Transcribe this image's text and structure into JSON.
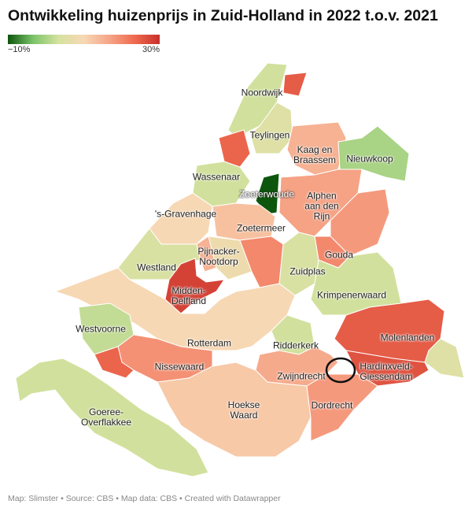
{
  "title": "Ontwikkeling huizenprijs in Zuid-Holland in 2022 t.o.v. 2021",
  "legend": {
    "colors": [
      "#0d560d",
      "#7cc46a",
      "#d5e2a0",
      "#f7d8b4",
      "#f6a588",
      "#ef6b50",
      "#c8302b"
    ],
    "ticks": [
      {
        "value": -10,
        "label": "−10%"
      },
      {
        "value": 30,
        "label": "30%"
      }
    ]
  },
  "regions": [
    {
      "name": "Noordwijk",
      "value": 3
    },
    {
      "name": null,
      "value": 25
    },
    {
      "name": "Teylingen",
      "value": 5
    },
    {
      "name": null,
      "value": 24
    },
    {
      "name": "Kaag en\nBraassem",
      "value": 15
    },
    {
      "name": "Nieuwkoop",
      "value": 0
    },
    {
      "name": "Wassenaar",
      "value": 3
    },
    {
      "name": "Zoeterwoude",
      "value": -10
    },
    {
      "name": "Alphen\naan den\nRijn",
      "value": 17
    },
    {
      "name": null,
      "value": 18
    },
    {
      "name": "'s-Gravenhage",
      "value": 10
    },
    {
      "name": "Zoetermeer",
      "value": 13
    },
    {
      "name": "Pijnacker-\nNootdorp",
      "value": 8
    },
    {
      "name": null,
      "value": 20
    },
    {
      "name": "Westland",
      "value": 4
    },
    {
      "name": null,
      "value": 15
    },
    {
      "name": "Gouda",
      "value": 20
    },
    {
      "name": "Zuidplas",
      "value": 4
    },
    {
      "name": "Rotterdam",
      "value": 10
    },
    {
      "name": "Midden-\nDelfland",
      "value": 28
    },
    {
      "name": "Krimpenerwaard",
      "value": 3
    },
    {
      "name": "Westvoorne",
      "value": 2
    },
    {
      "name": "Ridderkerk",
      "value": 3
    },
    {
      "name": "Molenlanden",
      "value": 25
    },
    {
      "name": null,
      "value": 5
    },
    {
      "name": "Hardinxveld-\nGiessendam",
      "value": 26
    },
    {
      "name": "Nissewaard",
      "value": 19
    },
    {
      "name": null,
      "value": 24
    },
    {
      "name": "Zwijndrecht",
      "value": 16
    },
    {
      "name": "Hoekse\nWaard",
      "value": 12
    },
    {
      "name": "Dordrecht",
      "value": 18
    },
    {
      "name": "Goeree-\nOverflakkee",
      "value": 3
    }
  ],
  "footer": "Map: Slimster • Source: CBS • Map data: CBS • Created with Datawrapper"
}
